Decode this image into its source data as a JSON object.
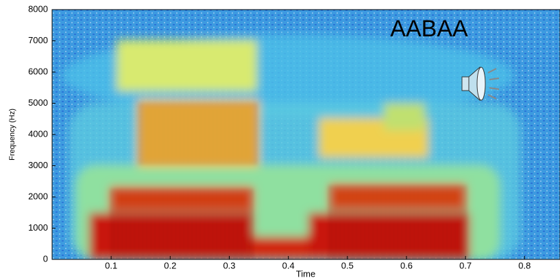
{
  "chart_data": {
    "type": "spectrogram",
    "annotation": "AABAA",
    "xlabel": "Time",
    "ylabel": "Frequency (Hz)",
    "xlim": [
      0,
      0.86
    ],
    "xticks": [
      0.1,
      0.2,
      0.3,
      0.4,
      0.5,
      0.6,
      0.7,
      0.8
    ],
    "ylim": [
      0,
      8000
    ],
    "yticks": [
      0,
      1000,
      2000,
      3000,
      4000,
      5000,
      6000,
      7000,
      8000
    ]
  }
}
